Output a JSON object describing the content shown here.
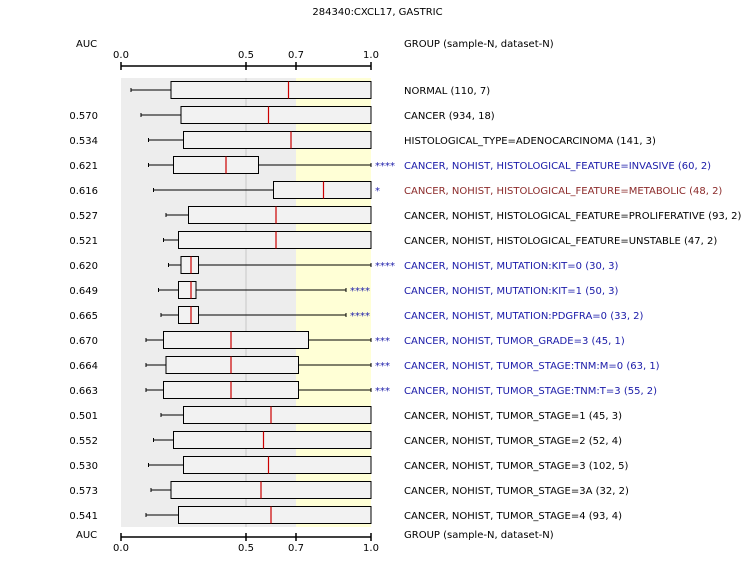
{
  "chart_data": {
    "type": "boxplot",
    "title": "284340:CXCL17, GASTRIC",
    "axis": {
      "label": "AUC",
      "ticks": [
        0.0,
        0.5,
        0.7,
        1.0
      ],
      "tick_labels": [
        "0.0",
        "0.5",
        "0.7",
        "1.0"
      ],
      "range": [
        0,
        1
      ],
      "highlight_from": 0.7
    },
    "group_header": "GROUP (sample-N, dataset-N)",
    "colors": {
      "grey_band": "#ededed",
      "yellow_band": "#ffffd6",
      "box_fill": "#f2f2f2",
      "median": "#cc0000",
      "default_text": "#000000",
      "up_text": "#1a1aa8",
      "down_text": "#8b2a2a",
      "star": "#1a1aa8"
    },
    "rows": [
      {
        "auc": "",
        "group": "NORMAL (110, 7)",
        "q1": 0.2,
        "median": 0.67,
        "q3": 1.0,
        "wlo": 0.04,
        "whi": 1.0,
        "stars": "",
        "style": "default"
      },
      {
        "auc": "0.570",
        "group": "CANCER (934, 18)",
        "q1": 0.24,
        "median": 0.59,
        "q3": 1.0,
        "wlo": 0.08,
        "whi": 1.0,
        "stars": "",
        "style": "default"
      },
      {
        "auc": "0.534",
        "group": "HISTOLOGICAL_TYPE=ADENOCARCINOMA (141, 3)",
        "q1": 0.25,
        "median": 0.68,
        "q3": 1.0,
        "wlo": 0.11,
        "whi": 1.0,
        "stars": "",
        "style": "default"
      },
      {
        "auc": "0.621",
        "group": "CANCER, NOHIST, HISTOLOGICAL_FEATURE=INVASIVE (60, 2)",
        "q1": 0.21,
        "median": 0.42,
        "q3": 0.55,
        "wlo": 0.11,
        "whi": 1.0,
        "stars": "****",
        "style": "up"
      },
      {
        "auc": "0.616",
        "group": "CANCER, NOHIST, HISTOLOGICAL_FEATURE=METABOLIC (48, 2)",
        "q1": 0.61,
        "median": 0.81,
        "q3": 1.0,
        "wlo": 0.13,
        "whi": 1.0,
        "stars": "*",
        "style": "down"
      },
      {
        "auc": "0.527",
        "group": "CANCER, NOHIST, HISTOLOGICAL_FEATURE=PROLIFERATIVE (93, 2)",
        "q1": 0.27,
        "median": 0.62,
        "q3": 1.0,
        "wlo": 0.18,
        "whi": 1.0,
        "stars": "",
        "style": "default"
      },
      {
        "auc": "0.521",
        "group": "CANCER, NOHIST, HISTOLOGICAL_FEATURE=UNSTABLE (47, 2)",
        "q1": 0.23,
        "median": 0.62,
        "q3": 1.0,
        "wlo": 0.17,
        "whi": 1.0,
        "stars": "",
        "style": "default"
      },
      {
        "auc": "0.620",
        "group": "CANCER, NOHIST, MUTATION:KIT=0 (30, 3)",
        "q1": 0.24,
        "median": 0.28,
        "q3": 0.31,
        "wlo": 0.19,
        "whi": 1.0,
        "stars": "****",
        "style": "up"
      },
      {
        "auc": "0.649",
        "group": "CANCER, NOHIST, MUTATION:KIT=1 (50, 3)",
        "q1": 0.23,
        "median": 0.28,
        "q3": 0.3,
        "wlo": 0.15,
        "whi": 0.9,
        "stars": "****",
        "style": "up"
      },
      {
        "auc": "0.665",
        "group": "CANCER, NOHIST, MUTATION:PDGFRA=0 (33, 2)",
        "q1": 0.23,
        "median": 0.28,
        "q3": 0.31,
        "wlo": 0.16,
        "whi": 0.9,
        "stars": "****",
        "style": "up"
      },
      {
        "auc": "0.670",
        "group": "CANCER, NOHIST, TUMOR_GRADE=3 (45, 1)",
        "q1": 0.17,
        "median": 0.44,
        "q3": 0.75,
        "wlo": 0.1,
        "whi": 1.0,
        "stars": "***",
        "style": "up"
      },
      {
        "auc": "0.664",
        "group": "CANCER, NOHIST, TUMOR_STAGE:TNM:M=0 (63, 1)",
        "q1": 0.18,
        "median": 0.44,
        "q3": 0.71,
        "wlo": 0.1,
        "whi": 1.0,
        "stars": "***",
        "style": "up"
      },
      {
        "auc": "0.663",
        "group": "CANCER, NOHIST, TUMOR_STAGE:TNM:T=3 (55, 2)",
        "q1": 0.17,
        "median": 0.44,
        "q3": 0.71,
        "wlo": 0.1,
        "whi": 1.0,
        "stars": "***",
        "style": "up"
      },
      {
        "auc": "0.501",
        "group": "CANCER, NOHIST, TUMOR_STAGE=1 (45, 3)",
        "q1": 0.25,
        "median": 0.6,
        "q3": 1.0,
        "wlo": 0.16,
        "whi": 1.0,
        "stars": "",
        "style": "default"
      },
      {
        "auc": "0.552",
        "group": "CANCER, NOHIST, TUMOR_STAGE=2 (52, 4)",
        "q1": 0.21,
        "median": 0.57,
        "q3": 1.0,
        "wlo": 0.13,
        "whi": 1.0,
        "stars": "",
        "style": "default"
      },
      {
        "auc": "0.530",
        "group": "CANCER, NOHIST, TUMOR_STAGE=3 (102, 5)",
        "q1": 0.25,
        "median": 0.59,
        "q3": 1.0,
        "wlo": 0.11,
        "whi": 1.0,
        "stars": "",
        "style": "default"
      },
      {
        "auc": "0.573",
        "group": "CANCER, NOHIST, TUMOR_STAGE=3A (32, 2)",
        "q1": 0.2,
        "median": 0.56,
        "q3": 1.0,
        "wlo": 0.12,
        "whi": 1.0,
        "stars": "",
        "style": "default"
      },
      {
        "auc": "0.541",
        "group": "CANCER, NOHIST, TUMOR_STAGE=4 (93, 4)",
        "q1": 0.23,
        "median": 0.6,
        "q3": 1.0,
        "wlo": 0.1,
        "whi": 1.0,
        "stars": "",
        "style": "default"
      }
    ]
  }
}
